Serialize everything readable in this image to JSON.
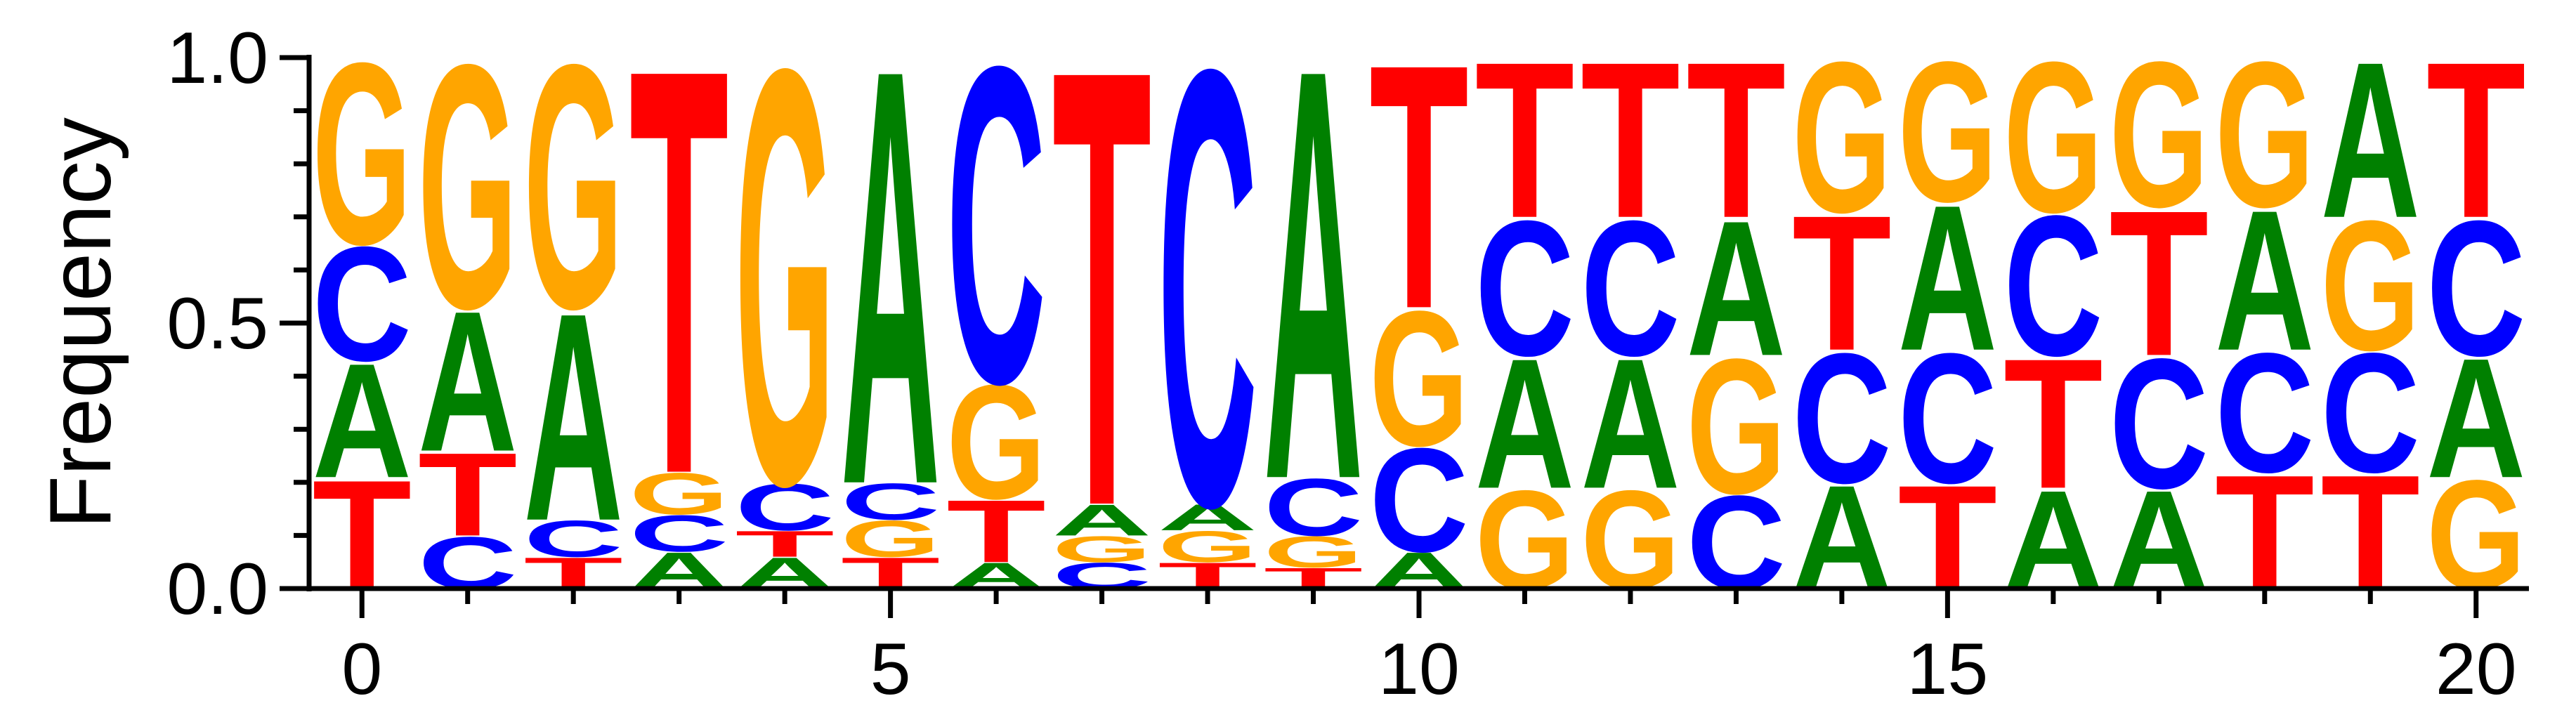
{
  "chart_data": {
    "type": "sequence-logo",
    "ylabel": "Frequency",
    "xlabel": "",
    "ylim": [
      0,
      1
    ],
    "xlim": [
      -0.5,
      20.5
    ],
    "y_ticks": [
      0.0,
      0.5,
      1.0
    ],
    "y_tick_labels": [
      "0.0",
      "0.5",
      "1.0"
    ],
    "x_ticks": [
      0,
      5,
      10,
      15,
      20
    ],
    "x_tick_labels": [
      "0",
      "5",
      "10",
      "15",
      "20"
    ],
    "colors": {
      "A": "#008000",
      "C": "#0000ff",
      "G": "#ffa500",
      "T": "#ff0000"
    },
    "positions": [
      {
        "pos": 0,
        "stack": [
          [
            "T",
            0.21
          ],
          [
            "A",
            0.22
          ],
          [
            "C",
            0.22
          ],
          [
            "G",
            0.35
          ]
        ]
      },
      {
        "pos": 1,
        "stack": [
          [
            "C",
            0.1
          ],
          [
            "T",
            0.16
          ],
          [
            "A",
            0.27
          ],
          [
            "G",
            0.47
          ]
        ]
      },
      {
        "pos": 2,
        "stack": [
          [
            "T",
            0.06
          ],
          [
            "C",
            0.07
          ],
          [
            "A",
            0.4
          ],
          [
            "G",
            0.47
          ]
        ]
      },
      {
        "pos": 3,
        "stack": [
          [
            "A",
            0.07
          ],
          [
            "C",
            0.07
          ],
          [
            "G",
            0.08
          ],
          [
            "T",
            0.78
          ]
        ]
      },
      {
        "pos": 4,
        "stack": [
          [
            "A",
            0.06
          ],
          [
            "T",
            0.05
          ],
          [
            "C",
            0.09
          ],
          [
            "G",
            0.8
          ]
        ]
      },
      {
        "pos": 5,
        "stack": [
          [
            "T",
            0.06
          ],
          [
            "G",
            0.07
          ],
          [
            "C",
            0.07
          ],
          [
            "A",
            0.8
          ]
        ]
      },
      {
        "pos": 6,
        "stack": [
          [
            "A",
            0.05
          ],
          [
            "T",
            0.12
          ],
          [
            "G",
            0.22
          ],
          [
            "C",
            0.61
          ]
        ]
      },
      {
        "pos": 7,
        "stack": [
          [
            "C",
            0.05
          ],
          [
            "G",
            0.05
          ],
          [
            "A",
            0.06
          ],
          [
            "T",
            0.84
          ]
        ]
      },
      {
        "pos": 8,
        "stack": [
          [
            "T",
            0.05
          ],
          [
            "G",
            0.06
          ],
          [
            "A",
            0.05
          ],
          [
            "C",
            0.84
          ]
        ]
      },
      {
        "pos": 9,
        "stack": [
          [
            "T",
            0.04
          ],
          [
            "G",
            0.06
          ],
          [
            "C",
            0.11
          ],
          [
            "A",
            0.79
          ]
        ]
      },
      {
        "pos": 10,
        "stack": [
          [
            "A",
            0.07
          ],
          [
            "C",
            0.2
          ],
          [
            "G",
            0.26
          ],
          [
            "T",
            0.47
          ]
        ]
      },
      {
        "pos": 11,
        "stack": [
          [
            "G",
            0.19
          ],
          [
            "A",
            0.25
          ],
          [
            "C",
            0.26
          ],
          [
            "T",
            0.3
          ]
        ]
      },
      {
        "pos": 12,
        "stack": [
          [
            "G",
            0.19
          ],
          [
            "A",
            0.25
          ],
          [
            "C",
            0.26
          ],
          [
            "T",
            0.3
          ]
        ]
      },
      {
        "pos": 13,
        "stack": [
          [
            "C",
            0.18
          ],
          [
            "G",
            0.26
          ],
          [
            "A",
            0.26
          ],
          [
            "T",
            0.3
          ]
        ]
      },
      {
        "pos": 14,
        "stack": [
          [
            "A",
            0.2
          ],
          [
            "C",
            0.25
          ],
          [
            "T",
            0.26
          ],
          [
            "G",
            0.29
          ]
        ]
      },
      {
        "pos": 15,
        "stack": [
          [
            "T",
            0.2
          ],
          [
            "C",
            0.25
          ],
          [
            "A",
            0.28
          ],
          [
            "G",
            0.27
          ]
        ]
      },
      {
        "pos": 16,
        "stack": [
          [
            "A",
            0.19
          ],
          [
            "T",
            0.25
          ],
          [
            "C",
            0.27
          ],
          [
            "G",
            0.29
          ]
        ]
      },
      {
        "pos": 17,
        "stack": [
          [
            "A",
            0.19
          ],
          [
            "C",
            0.25
          ],
          [
            "T",
            0.28
          ],
          [
            "G",
            0.28
          ]
        ]
      },
      {
        "pos": 18,
        "stack": [
          [
            "T",
            0.22
          ],
          [
            "C",
            0.23
          ],
          [
            "A",
            0.27
          ],
          [
            "G",
            0.28
          ]
        ]
      },
      {
        "pos": 19,
        "stack": [
          [
            "T",
            0.22
          ],
          [
            "C",
            0.23
          ],
          [
            "G",
            0.25
          ],
          [
            "A",
            0.3
          ]
        ]
      },
      {
        "pos": 20,
        "stack": [
          [
            "G",
            0.21
          ],
          [
            "A",
            0.23
          ],
          [
            "C",
            0.26
          ],
          [
            "T",
            0.3
          ]
        ]
      }
    ]
  }
}
